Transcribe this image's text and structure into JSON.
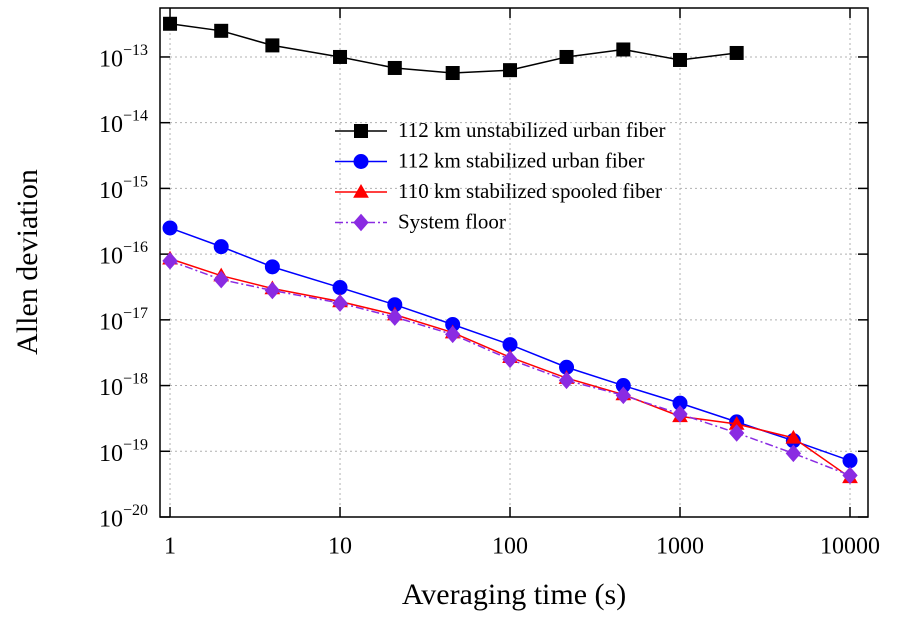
{
  "chart_data": {
    "type": "line",
    "x_label": "Averaging time (s)",
    "y_label": "Allen deviation",
    "x": [
      1,
      2,
      4,
      10,
      21,
      46,
      100,
      215,
      464,
      1000,
      2154,
      4642,
      10000
    ],
    "series": [
      {
        "name": "112 km unstabilized urban fiber",
        "color": "#000000",
        "marker": "square",
        "line_style": "solid",
        "values": [
          3.2e-13,
          2.5e-13,
          1.5e-13,
          1e-13,
          6.8e-14,
          5.7e-14,
          6.3e-14,
          1e-13,
          1.3e-13,
          9e-14,
          1.15e-13,
          null,
          null
        ]
      },
      {
        "name": "112 km stabilized urban fiber",
        "color": "#0000ff",
        "marker": "circle",
        "line_style": "solid",
        "values": [
          2.5e-16,
          1.3e-16,
          6.4e-17,
          3.1e-17,
          1.7e-17,
          8.5e-18,
          4.2e-18,
          1.9e-18,
          1e-18,
          5.4e-19,
          2.8e-19,
          1.45e-19,
          7.2e-20
        ]
      },
      {
        "name": "110 km stabilized spooled fiber",
        "color": "#ff0000",
        "marker": "triangle",
        "line_style": "solid",
        "values": [
          8.5e-17,
          4.7e-17,
          3e-17,
          1.9e-17,
          1.2e-17,
          6.4e-18,
          2.7e-18,
          1.3e-18,
          7.3e-19,
          3.4e-19,
          2.6e-19,
          1.6e-19,
          4e-20
        ]
      },
      {
        "name": "System floor",
        "color": "#8a2be2",
        "marker": "diamond",
        "line_style": "dashdot",
        "values": [
          7.9e-17,
          4.1e-17,
          2.8e-17,
          1.8e-17,
          1.1e-17,
          6e-18,
          2.5e-18,
          1.2e-18,
          7.1e-19,
          3.7e-19,
          1.9e-19,
          9.3e-20,
          4.3e-20
        ]
      }
    ],
    "xlog": true,
    "ylog": true,
    "xlim": [
      0.873,
      12760
    ],
    "ylim": [
      1e-20,
      5.56e-13
    ],
    "xticks": [
      1,
      10,
      100,
      1000,
      10000
    ],
    "yticks": [
      {
        "value": 1e-20,
        "label": "10−20"
      },
      {
        "value": 1e-19,
        "label": "10−19"
      },
      {
        "value": 1e-18,
        "label": "10−18"
      },
      {
        "value": 1e-17,
        "label": "10−17"
      },
      {
        "value": 1e-16,
        "label": "10−16"
      },
      {
        "value": 1e-15,
        "label": "10−15"
      },
      {
        "value": 1e-14,
        "label": "10−14"
      },
      {
        "value": 1e-13,
        "label": "10−13"
      }
    ],
    "grid": true,
    "legend": "upper right"
  }
}
